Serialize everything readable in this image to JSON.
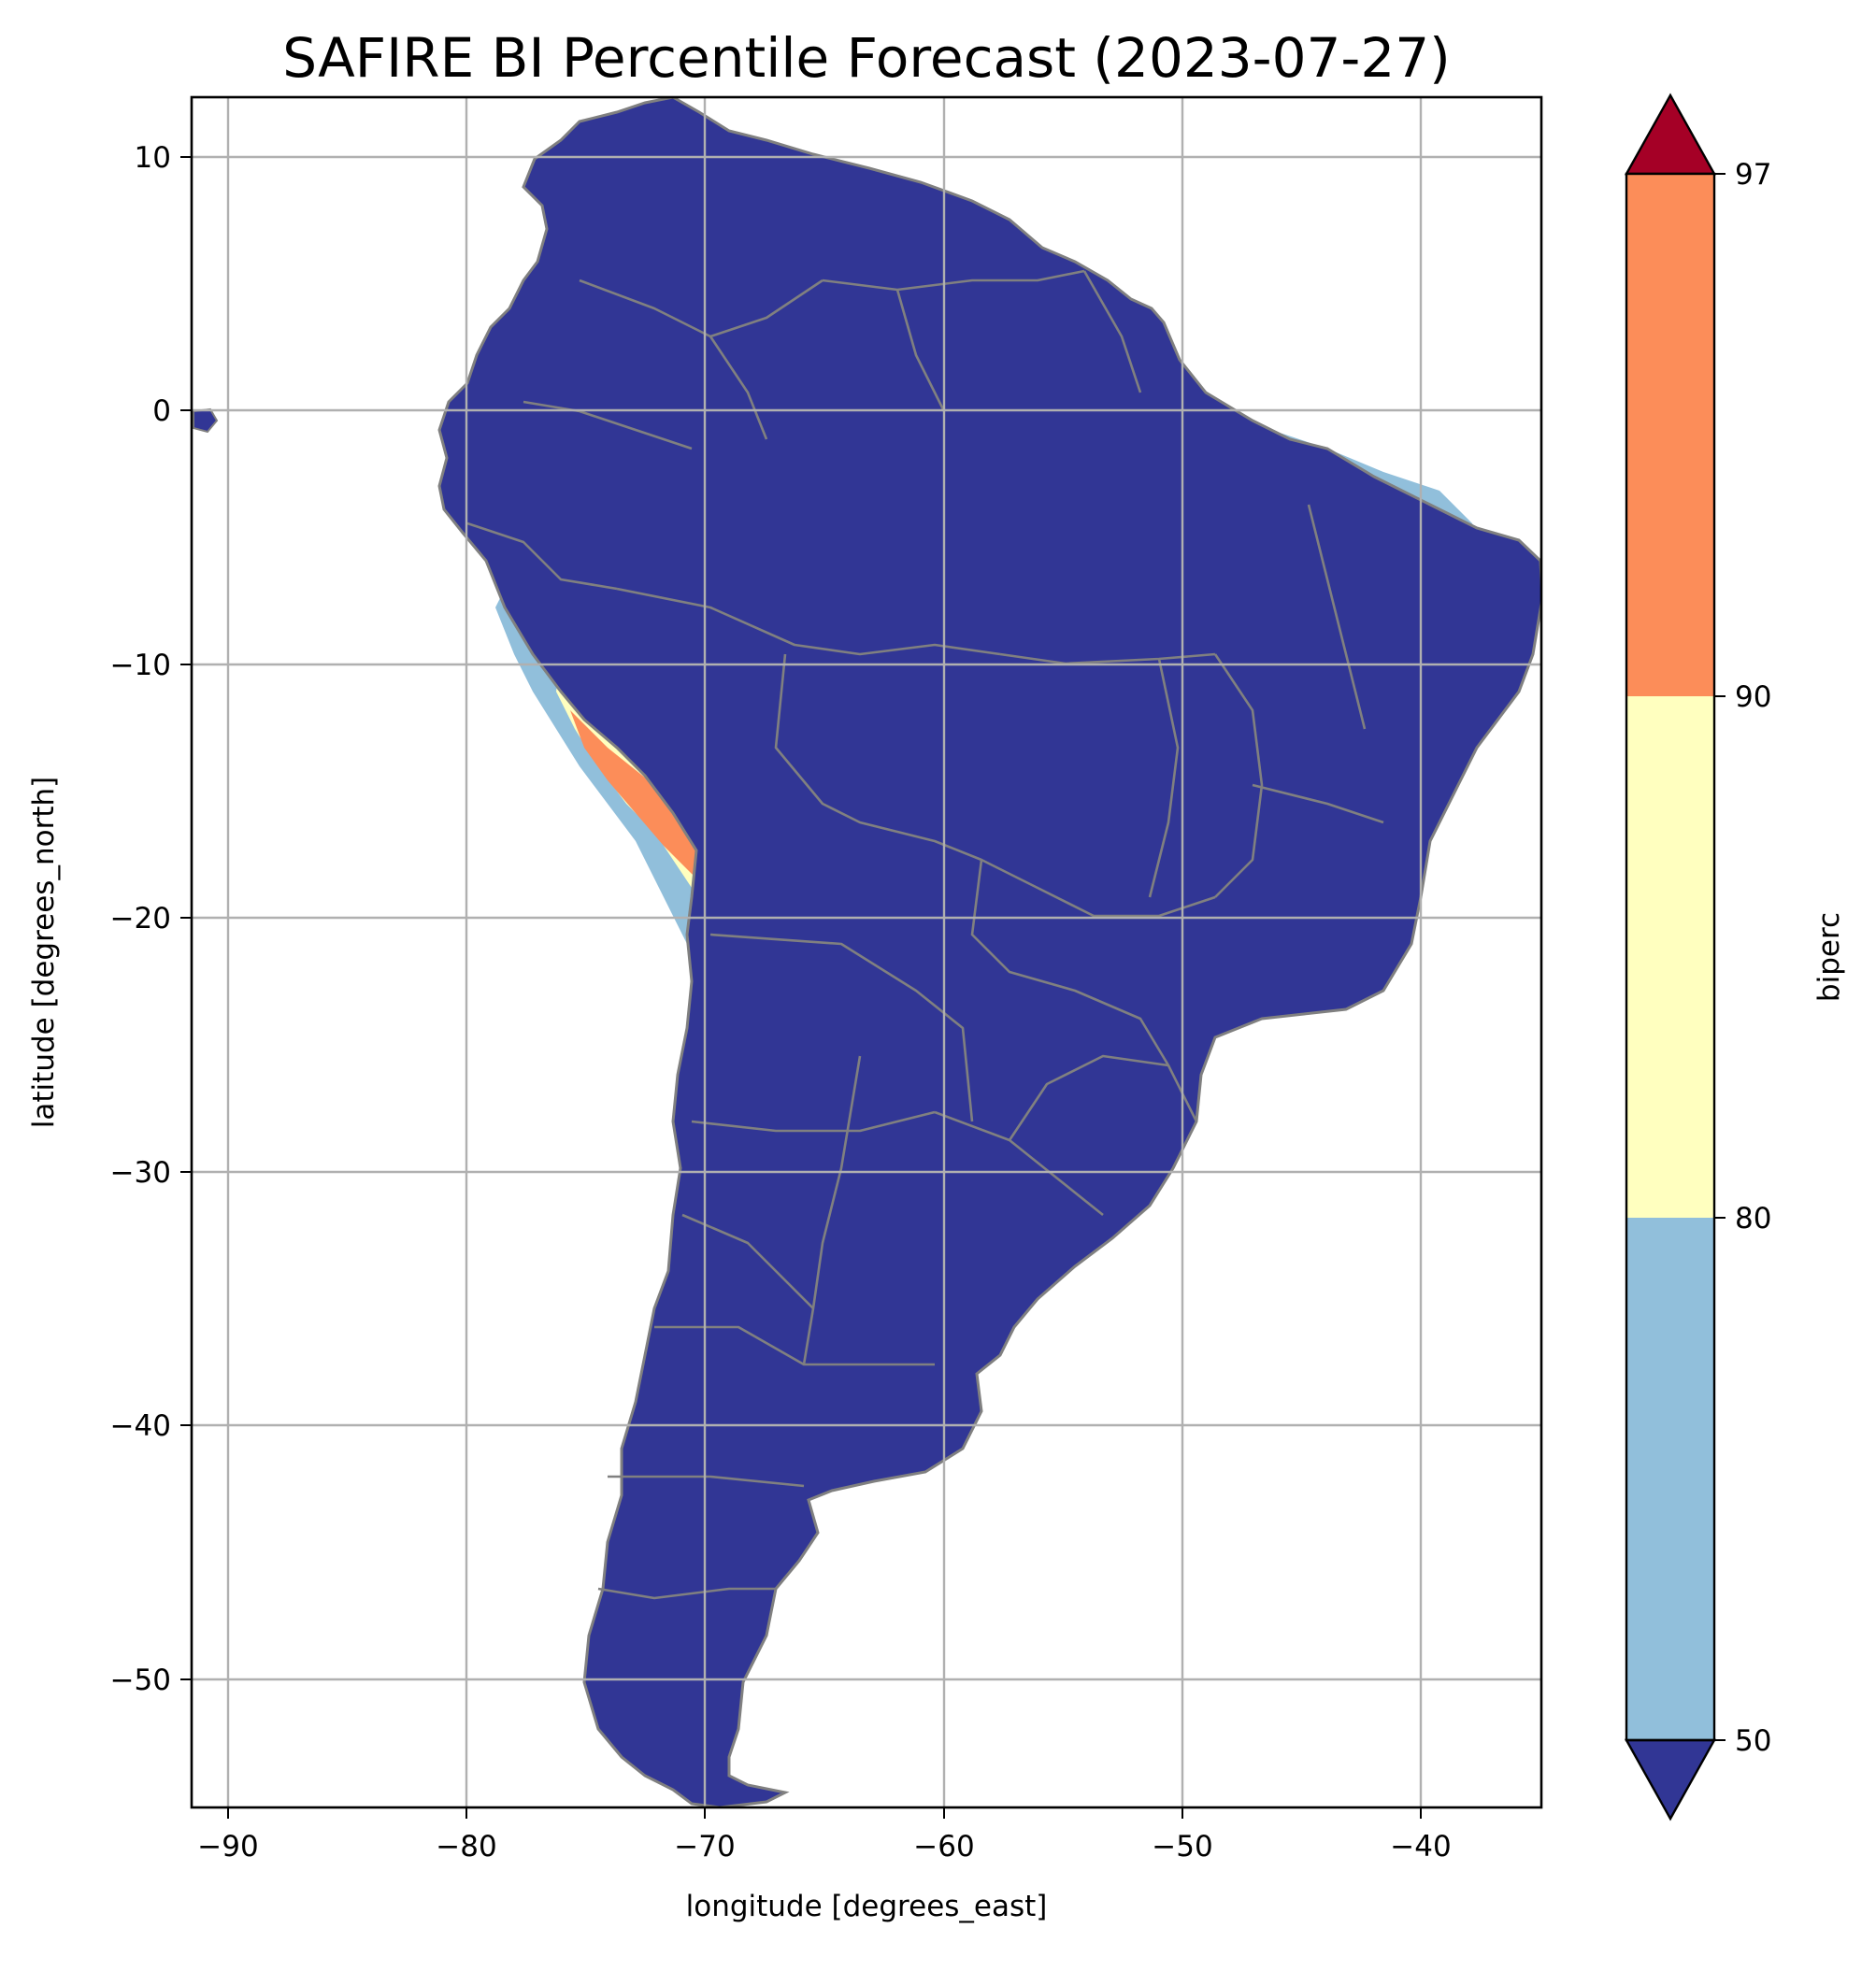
{
  "title": "SAFIRE BI Percentile Forecast (2023-07-27)",
  "xlabel": "longitude [degrees_east]",
  "ylabel": "latitude [degrees_north]",
  "colorbar": {
    "label": "biperc",
    "ticks": [
      "50",
      "80",
      "90",
      "97"
    ],
    "levels": [
      {
        "range": "<50",
        "color": "#313695"
      },
      {
        "range": "50-80",
        "color": "#91bfdb"
      },
      {
        "range": "80-90",
        "color": "#ffffbf"
      },
      {
        "range": "90-97",
        "color": "#fc8d59"
      },
      {
        "range": ">97",
        "color": "#a50026"
      }
    ]
  },
  "colors": {
    "boundary": "#808080",
    "grid": "#b0b0b0"
  },
  "chart_data": {
    "type": "heatmap",
    "title": "SAFIRE BI Percentile Forecast (2023-07-27)",
    "xlabel": "longitude [degrees_east]",
    "ylabel": "latitude [degrees_north]",
    "xlim": [
      -91.6,
      -35.0
    ],
    "ylim": [
      -55.9,
      12.3
    ],
    "xticks": [
      -90,
      -80,
      -70,
      -60,
      -50,
      -40
    ],
    "yticks": [
      10,
      0,
      -10,
      -20,
      -30,
      -40,
      -50
    ],
    "xtick_labels": [
      "−90",
      "−80",
      "−70",
      "−60",
      "−50",
      "−40"
    ],
    "ytick_labels": [
      "10",
      "0",
      "−10",
      "−20",
      "−30",
      "−40",
      "−50"
    ],
    "grid": true,
    "colorbar_label": "biperc",
    "colorbar_ticks": [
      50,
      80,
      90,
      97
    ],
    "region": "South America"
  }
}
